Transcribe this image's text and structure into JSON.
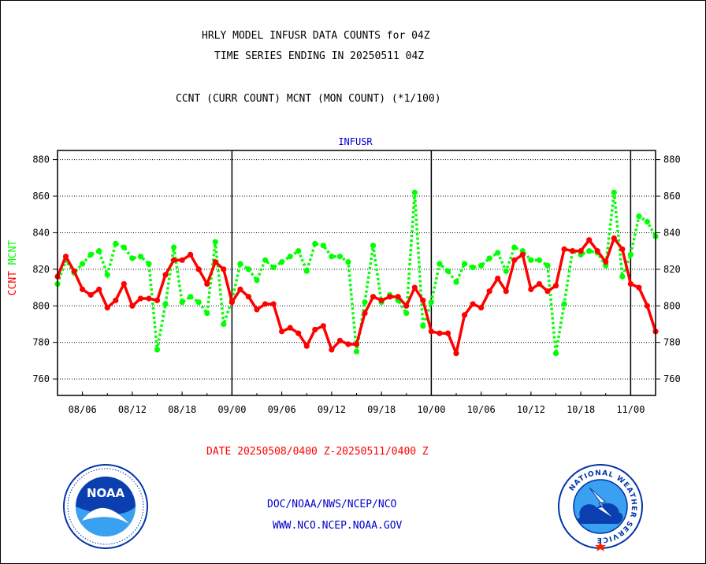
{
  "header": {
    "line1": "HRLY MODEL INFUSR DATA COUNTS for 04Z",
    "line2": "TIME SERIES ENDING IN 20250511 04Z",
    "line3": "CCNT (CURR COUNT) MCNT (MON COUNT) (*1/100)"
  },
  "footer": {
    "date_range": "DATE 20250508/0400 Z-20250511/0400 Z",
    "org_path": "DOC/NOAA/NWS/NCEP/NCO",
    "website": "WWW.NCO.NCEP.NOAA.GOV"
  },
  "logos": {
    "noaa_text": "NOAA",
    "nws_text": "NATIONAL WEATHER SERVICE"
  },
  "colors": {
    "ccnt": "#ff0000",
    "mcnt": "#00ff00",
    "title": "#0000cc",
    "axis": "#000000"
  },
  "chart_data": {
    "type": "line",
    "title": "INFUSR",
    "ylabel_parts": [
      {
        "text": "CCNT",
        "color": "#ff0000"
      },
      {
        "text": "MCNT",
        "color": "#00ff00"
      }
    ],
    "ylim": [
      751,
      885
    ],
    "yticks": [
      760,
      780,
      800,
      820,
      840,
      860,
      880
    ],
    "x_range": [
      0,
      72
    ],
    "xticks": [
      {
        "x": 3,
        "label": "08/06"
      },
      {
        "x": 9,
        "label": "08/12"
      },
      {
        "x": 15,
        "label": "08/18"
      },
      {
        "x": 21,
        "label": "09/00"
      },
      {
        "x": 27,
        "label": "09/06"
      },
      {
        "x": 33,
        "label": "09/12"
      },
      {
        "x": 39,
        "label": "09/18"
      },
      {
        "x": 45,
        "label": "10/00"
      },
      {
        "x": 51,
        "label": "10/06"
      },
      {
        "x": 57,
        "label": "10/12"
      },
      {
        "x": 63,
        "label": "10/18"
      },
      {
        "x": 69,
        "label": "11/00"
      }
    ],
    "day_boundaries": [
      21,
      45,
      69
    ],
    "grid": true,
    "series": [
      {
        "name": "CCNT",
        "color": "#ff0000",
        "style": "solid",
        "values": [
          816,
          827,
          819,
          809,
          806,
          809,
          799,
          803,
          812,
          800,
          804,
          804,
          803,
          817,
          825,
          825,
          828,
          820,
          812,
          824,
          820,
          802,
          809,
          805,
          798,
          801,
          801,
          786,
          788,
          785,
          778,
          787,
          789,
          776,
          781,
          779,
          779,
          796,
          805,
          803,
          805,
          805,
          800,
          810,
          803,
          786,
          785,
          785,
          774,
          795,
          801,
          799,
          808,
          815,
          808,
          825,
          828,
          809,
          812,
          808,
          811,
          831,
          830,
          830,
          836,
          830,
          824,
          837,
          831,
          812,
          810,
          800,
          786
        ]
      },
      {
        "name": "MCNT",
        "color": "#00ff00",
        "style": "dotted",
        "values": [
          812,
          825,
          818,
          823,
          828,
          830,
          817,
          834,
          832,
          826,
          827,
          823,
          776,
          801,
          832,
          802,
          805,
          802,
          796,
          835,
          790,
          803,
          823,
          820,
          814,
          825,
          821,
          824,
          827,
          830,
          819,
          834,
          833,
          827,
          827,
          824,
          775,
          802,
          833,
          802,
          806,
          803,
          796,
          862,
          789,
          802,
          823,
          819,
          813,
          823,
          821,
          822,
          826,
          829,
          819,
          832,
          830,
          825,
          825,
          822,
          774,
          801,
          830,
          828,
          830,
          829,
          822,
          862,
          816,
          828,
          849,
          846,
          838
        ]
      }
    ]
  }
}
